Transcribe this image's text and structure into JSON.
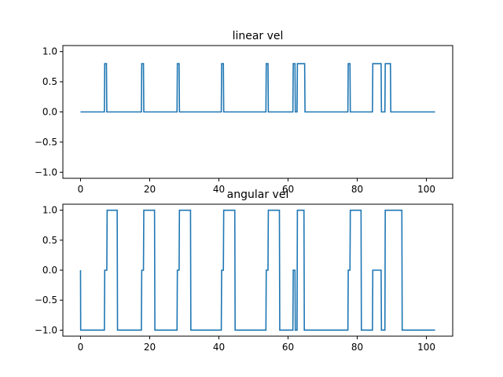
{
  "chart_data": [
    {
      "type": "line",
      "title": "linear vel",
      "xlabel": "",
      "ylabel": "",
      "xlim": [
        -5.1,
        107.6
      ],
      "ylim": [
        -1.1,
        1.1
      ],
      "xticks": [
        0,
        20,
        40,
        60,
        80,
        100
      ],
      "yticks": [
        1.0,
        0.5,
        0.0,
        -0.5,
        -1.0
      ],
      "xtick_labels": [
        "0",
        "20",
        "40",
        "60",
        "80",
        "100"
      ],
      "ytick_labels": [
        "1.0",
        "0.5",
        "0.0",
        "−0.5",
        "−1.0"
      ],
      "grid": false,
      "color": "#1f77b4",
      "series": [
        {
          "x": [
            0,
            6.9,
            7.0,
            7.5,
            7.6,
            17.6,
            17.7,
            18.2,
            18.3,
            27.9,
            28.0,
            28.5,
            28.6,
            40.7,
            40.8,
            41.3,
            41.4,
            53.6,
            53.7,
            54.2,
            54.3,
            61.4,
            61.5,
            62.0,
            62.1,
            62.6,
            62.7,
            64.8,
            64.9,
            77.3,
            77.4,
            77.9,
            78.0,
            84.4,
            84.5,
            86.9,
            87.0,
            88.0,
            88.1,
            89.6,
            89.7,
            102.5
          ],
          "y": [
            0,
            0,
            0.8,
            0.8,
            0,
            0,
            0.8,
            0.8,
            0,
            0,
            0.8,
            0.8,
            0,
            0,
            0.8,
            0.8,
            0,
            0,
            0.8,
            0.8,
            0,
            0,
            0.8,
            0.8,
            0,
            0,
            0.8,
            0.8,
            0,
            0,
            0.8,
            0.8,
            0,
            0,
            0.8,
            0.8,
            0,
            0,
            0.8,
            0.8,
            0,
            0
          ]
        }
      ]
    },
    {
      "type": "line",
      "title": "angular vel",
      "xlabel": "",
      "ylabel": "",
      "xlim": [
        -5.1,
        107.6
      ],
      "ylim": [
        -1.1,
        1.1
      ],
      "xticks": [
        0,
        20,
        40,
        60,
        80,
        100
      ],
      "yticks": [
        1.0,
        0.5,
        0.0,
        -0.5,
        -1.0
      ],
      "xtick_labels": [
        "0",
        "20",
        "40",
        "60",
        "80",
        "100"
      ],
      "ytick_labels": [
        "1.0",
        "0.5",
        "0.0",
        "−0.5",
        "−1.0"
      ],
      "grid": false,
      "color": "#1f77b4",
      "series": [
        {
          "x": [
            0,
            0.05,
            6.9,
            7.0,
            7.6,
            7.7,
            10.6,
            10.7,
            17.6,
            17.7,
            18.2,
            18.3,
            21.4,
            21.5,
            27.9,
            28.0,
            28.5,
            28.6,
            31.8,
            31.9,
            40.7,
            40.8,
            41.3,
            41.4,
            44.6,
            44.7,
            53.6,
            53.7,
            54.2,
            54.3,
            57.5,
            57.6,
            61.4,
            61.5,
            62.0,
            62.1,
            62.6,
            62.7,
            64.6,
            64.7,
            67.8,
            67.9,
            77.3,
            77.4,
            77.9,
            78.0,
            81.1,
            81.2,
            84.4,
            84.5,
            86.9,
            87.0,
            88.0,
            88.1,
            89.6,
            89.7,
            92.9,
            93.0,
            102.5
          ],
          "y": [
            0,
            -1,
            -1,
            0,
            0,
            1,
            1,
            -1,
            -1,
            0,
            0,
            1,
            1,
            -1,
            -1,
            0,
            0,
            1,
            1,
            -1,
            -1,
            0,
            0,
            1,
            1,
            -1,
            -1,
            0,
            0,
            1,
            1,
            -1,
            -1,
            0,
            0,
            -1,
            -1,
            1,
            1,
            -1,
            -1,
            -1,
            -1,
            0,
            0,
            1,
            1,
            -1,
            -1,
            0,
            0,
            -1,
            -1,
            1,
            1,
            1,
            1,
            -1,
            -1
          ]
        }
      ]
    }
  ]
}
